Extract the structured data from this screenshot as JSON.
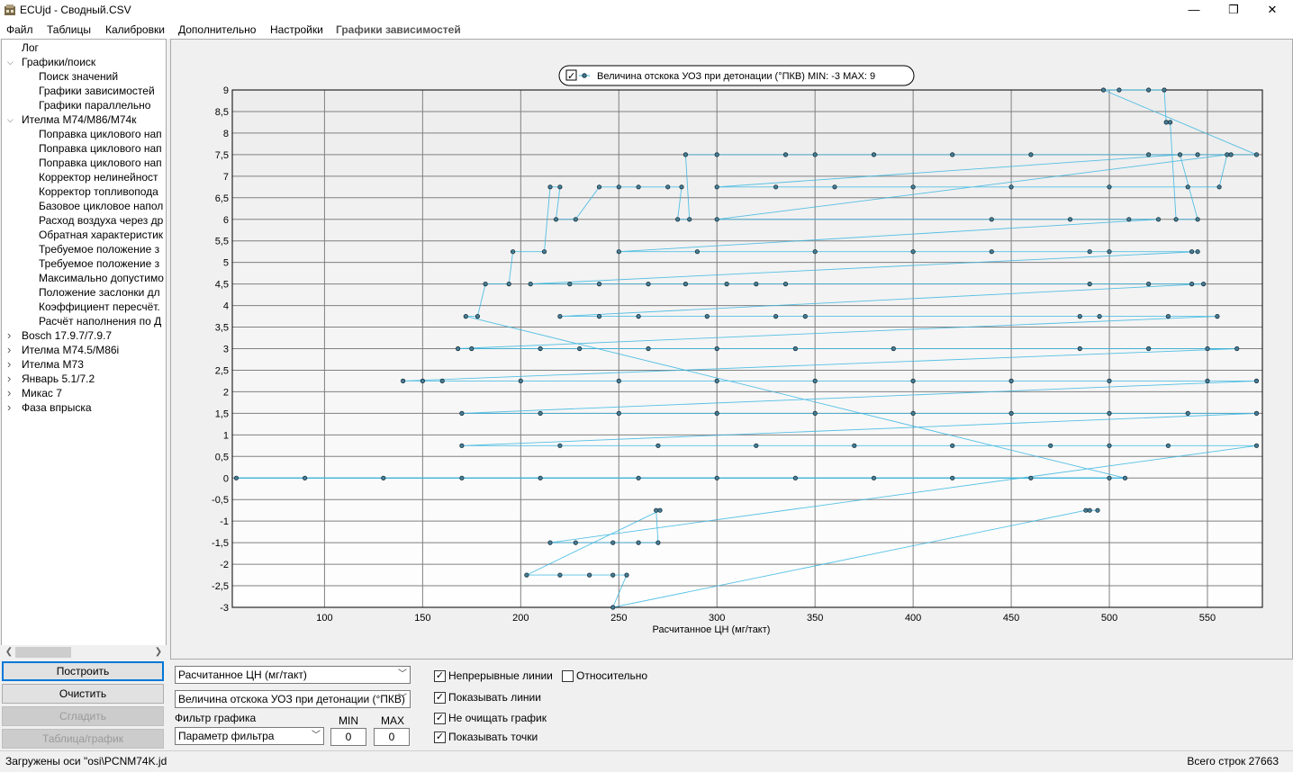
{
  "window": {
    "title": "ECUjd - Сводный.CSV",
    "minimize_glyph": "—",
    "restore_glyph": "❐",
    "close_glyph": "✕"
  },
  "menu": {
    "items": [
      "Файл",
      "Таблицы",
      "Калибровки",
      "Дополнительно",
      "Настройки",
      "Графики зависимостей"
    ],
    "active_index": 5
  },
  "tree": {
    "items": [
      {
        "label": "Лог",
        "level": 0,
        "arrow": ""
      },
      {
        "label": "Графики/поиск",
        "level": 0,
        "arrow": "expanded"
      },
      {
        "label": "Поиск значений",
        "level": 1,
        "arrow": ""
      },
      {
        "label": "Графики зависимостей",
        "level": 1,
        "arrow": ""
      },
      {
        "label": "Графики параллельно",
        "level": 1,
        "arrow": ""
      },
      {
        "label": "Ителма M74/M86/M74к",
        "level": 0,
        "arrow": "expanded"
      },
      {
        "label": "Поправка циклового нап",
        "level": 1,
        "arrow": ""
      },
      {
        "label": "Поправка циклового нап",
        "level": 1,
        "arrow": ""
      },
      {
        "label": "Поправка циклового нап",
        "level": 1,
        "arrow": ""
      },
      {
        "label": "Корректор нелинейност",
        "level": 1,
        "arrow": ""
      },
      {
        "label": "Корректор топливопода",
        "level": 1,
        "arrow": ""
      },
      {
        "label": "Базовое цикловое напол",
        "level": 1,
        "arrow": ""
      },
      {
        "label": "Расход воздуха через др",
        "level": 1,
        "arrow": ""
      },
      {
        "label": "Обратная характеристик",
        "level": 1,
        "arrow": ""
      },
      {
        "label": "Требуемое положение з",
        "level": 1,
        "arrow": ""
      },
      {
        "label": "Требуемое положение з",
        "level": 1,
        "arrow": ""
      },
      {
        "label": "Максимально допустимо",
        "level": 1,
        "arrow": ""
      },
      {
        "label": "Положение заслонки дл",
        "level": 1,
        "arrow": ""
      },
      {
        "label": "Коэффициент пересчёт.",
        "level": 1,
        "arrow": ""
      },
      {
        "label": "Расчёт наполнения по Д",
        "level": 1,
        "arrow": ""
      },
      {
        "label": "Bosch 17.9.7/7.9.7",
        "level": 0,
        "arrow": "collapsed"
      },
      {
        "label": "Ителма M74.5/M86i",
        "level": 0,
        "arrow": "collapsed"
      },
      {
        "label": "Ителма M73",
        "level": 0,
        "arrow": "collapsed"
      },
      {
        "label": "Январь 5.1/7.2",
        "level": 0,
        "arrow": "collapsed"
      },
      {
        "label": "Микас 7",
        "level": 0,
        "arrow": "collapsed"
      },
      {
        "label": "Фаза впрыска",
        "level": 0,
        "arrow": "collapsed"
      }
    ]
  },
  "left_buttons": {
    "build": "Построить",
    "clear": "Очистить",
    "smooth": "Сгладить",
    "table_graph": "Таблица/график"
  },
  "controls": {
    "x_axis_select": "Расчитанное ЦН (мг/такт)",
    "y_axis_select": "Величина отскока УОЗ при детонации (°ПКВ)",
    "filter_label": "Фильтр графика",
    "filter_select": "Параметр фильтра",
    "min_label": "MIN",
    "max_label": "MAX",
    "min_value": "0",
    "max_value": "0",
    "checkboxes": [
      {
        "label": "Непрерывные линии",
        "checked": true
      },
      {
        "label": "Показывать линии",
        "checked": true
      },
      {
        "label": "Не очищать график",
        "checked": true
      },
      {
        "label": "Показывать точки",
        "checked": true
      },
      {
        "label": "Относительно",
        "checked": false
      }
    ]
  },
  "status": {
    "left": "Загружены оси \"osi\\PCNM74K.jd",
    "right": "Всего строк 27663"
  },
  "colors": {
    "series": "#38b6e0",
    "point_fill": "#4a7d95",
    "point_stroke": "#10303c",
    "grid": "#808080",
    "focus_border": "#0078d7"
  },
  "chart_data": {
    "type": "line",
    "legend": "Величина отскока УОЗ при детонации (°ПКВ) MIN: -3 MAX: 9",
    "legend_position": "top-center",
    "xlabel": "Расчитанное ЦН (мг/такт)",
    "ylabel": "",
    "xlim": [
      53,
      578
    ],
    "ylim": [
      -3,
      9
    ],
    "x_ticks": [
      100,
      150,
      200,
      250,
      300,
      350,
      400,
      450,
      500,
      550
    ],
    "y_ticks": [
      -3,
      -2.5,
      -2,
      -1.5,
      -1,
      -0.5,
      0,
      0.5,
      1,
      1.5,
      2,
      2.5,
      3,
      3.5,
      4,
      4.5,
      5,
      5.5,
      6,
      6.5,
      7,
      7.5,
      8,
      8.5,
      9
    ],
    "y_tick_labels": [
      "-3",
      "-2,5",
      "-2",
      "-1,5",
      "-1",
      "-0,5",
      "0",
      "0,5",
      "1",
      "1,5",
      "2",
      "2,5",
      "3",
      "3,5",
      "4",
      "4,5",
      "5",
      "5,5",
      "6",
      "6,5",
      "7",
      "7,5",
      "8",
      "8,5",
      "9"
    ],
    "grid": true,
    "series": [
      {
        "name": "Величина отскока УОЗ при детонации (°ПКВ)",
        "points": [
          [
            55,
            0
          ],
          [
            90,
            0
          ],
          [
            130,
            0
          ],
          [
            170,
            0
          ],
          [
            210,
            0
          ],
          [
            260,
            0
          ],
          [
            300,
            0
          ],
          [
            340,
            0
          ],
          [
            380,
            0
          ],
          [
            420,
            0
          ],
          [
            460,
            0
          ],
          [
            500,
            0
          ],
          [
            508,
            0
          ],
          [
            172,
            3.75
          ],
          [
            178,
            3.75
          ],
          [
            182,
            4.5
          ],
          [
            194,
            4.5
          ],
          [
            196,
            5.25
          ],
          [
            212,
            5.25
          ],
          [
            215,
            6.75
          ],
          [
            220,
            6.75
          ],
          [
            218,
            6
          ],
          [
            228,
            6
          ],
          [
            240,
            6.75
          ],
          [
            250,
            6.75
          ],
          [
            260,
            6.75
          ],
          [
            275,
            6.75
          ],
          [
            282,
            6.75
          ],
          [
            280,
            6
          ],
          [
            286,
            6
          ],
          [
            284,
            7.5
          ],
          [
            300,
            7.5
          ],
          [
            335,
            7.5
          ],
          [
            350,
            7.5
          ],
          [
            380,
            7.5
          ],
          [
            420,
            7.5
          ],
          [
            460,
            7.5
          ],
          [
            520,
            7.5
          ],
          [
            545,
            7.5
          ],
          [
            562,
            7.5
          ],
          [
            575,
            7.5
          ],
          [
            497,
            9
          ],
          [
            505,
            9
          ],
          [
            520,
            9
          ],
          [
            528,
            9
          ],
          [
            529,
            8.25
          ],
          [
            531,
            8.25
          ],
          [
            534,
            6
          ],
          [
            545,
            6
          ],
          [
            536,
            7.5
          ],
          [
            300,
            6.75
          ],
          [
            330,
            6.75
          ],
          [
            360,
            6.75
          ],
          [
            400,
            6.75
          ],
          [
            450,
            6.75
          ],
          [
            500,
            6.75
          ],
          [
            540,
            6.75
          ],
          [
            556,
            6.75
          ],
          [
            560,
            7.5
          ],
          [
            300,
            6
          ],
          [
            440,
            6
          ],
          [
            480,
            6
          ],
          [
            510,
            6
          ],
          [
            525,
            6
          ],
          [
            250,
            5.25
          ],
          [
            290,
            5.25
          ],
          [
            350,
            5.25
          ],
          [
            400,
            5.25
          ],
          [
            440,
            5.25
          ],
          [
            490,
            5.25
          ],
          [
            500,
            5.25
          ],
          [
            542,
            5.25
          ],
          [
            545,
            5.25
          ],
          [
            205,
            4.5
          ],
          [
            225,
            4.5
          ],
          [
            240,
            4.5
          ],
          [
            265,
            4.5
          ],
          [
            284,
            4.5
          ],
          [
            305,
            4.5
          ],
          [
            320,
            4.5
          ],
          [
            335,
            4.5
          ],
          [
            490,
            4.5
          ],
          [
            520,
            4.5
          ],
          [
            542,
            4.5
          ],
          [
            548,
            4.5
          ],
          [
            220,
            3.75
          ],
          [
            240,
            3.75
          ],
          [
            260,
            3.75
          ],
          [
            295,
            3.75
          ],
          [
            330,
            3.75
          ],
          [
            345,
            3.75
          ],
          [
            485,
            3.75
          ],
          [
            495,
            3.75
          ],
          [
            530,
            3.75
          ],
          [
            555,
            3.75
          ],
          [
            168,
            3
          ],
          [
            175,
            3
          ],
          [
            210,
            3
          ],
          [
            230,
            3
          ],
          [
            265,
            3
          ],
          [
            300,
            3
          ],
          [
            340,
            3
          ],
          [
            390,
            3
          ],
          [
            485,
            3
          ],
          [
            520,
            3
          ],
          [
            550,
            3
          ],
          [
            565,
            3
          ],
          [
            140,
            2.25
          ],
          [
            150,
            2.25
          ],
          [
            160,
            2.25
          ],
          [
            200,
            2.25
          ],
          [
            250,
            2.25
          ],
          [
            300,
            2.25
          ],
          [
            350,
            2.25
          ],
          [
            400,
            2.25
          ],
          [
            450,
            2.25
          ],
          [
            500,
            2.25
          ],
          [
            550,
            2.25
          ],
          [
            575,
            2.25
          ],
          [
            170,
            1.5
          ],
          [
            210,
            1.5
          ],
          [
            250,
            1.5
          ],
          [
            300,
            1.5
          ],
          [
            350,
            1.5
          ],
          [
            400,
            1.5
          ],
          [
            450,
            1.5
          ],
          [
            500,
            1.5
          ],
          [
            540,
            1.5
          ],
          [
            575,
            1.5
          ],
          [
            170,
            0.75
          ],
          [
            220,
            0.75
          ],
          [
            270,
            0.75
          ],
          [
            320,
            0.75
          ],
          [
            370,
            0.75
          ],
          [
            420,
            0.75
          ],
          [
            470,
            0.75
          ],
          [
            500,
            0.75
          ],
          [
            530,
            0.75
          ],
          [
            575,
            0.75
          ],
          [
            215,
            -1.5
          ],
          [
            228,
            -1.5
          ],
          [
            247,
            -1.5
          ],
          [
            260,
            -1.5
          ],
          [
            270,
            -1.5
          ],
          [
            269,
            -0.75
          ],
          [
            271,
            -0.75
          ],
          [
            203,
            -2.25
          ],
          [
            220,
            -2.25
          ],
          [
            235,
            -2.25
          ],
          [
            247,
            -2.25
          ],
          [
            254,
            -2.25
          ],
          [
            247,
            -3
          ],
          [
            488,
            -0.75
          ],
          [
            490,
            -0.75
          ],
          [
            494,
            -0.75
          ]
        ]
      }
    ]
  }
}
